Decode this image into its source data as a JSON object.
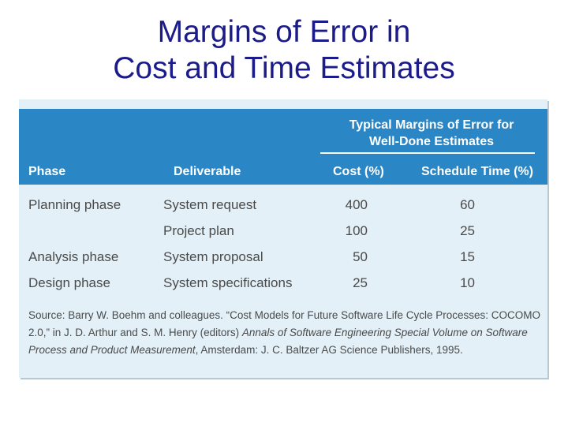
{
  "slide": {
    "title_line1": "Margins of Error in",
    "title_line2": "Cost and Time Estimates"
  },
  "table": {
    "group_header_line1": "Typical Margins of Error for",
    "group_header_line2": "Well-Done Estimates",
    "columns": [
      "Phase",
      "Deliverable",
      "Cost (%)",
      "Schedule Time (%)"
    ],
    "rows": [
      {
        "phase": "Planning phase",
        "deliverable": "System request",
        "cost": "400",
        "schedule": "60"
      },
      {
        "phase": "",
        "deliverable": "Project plan",
        "cost": "100",
        "schedule": "25"
      },
      {
        "phase": "Analysis phase",
        "deliverable": "System proposal",
        "cost": "50",
        "schedule": "15"
      },
      {
        "phase": "Design phase",
        "deliverable": "System specifications",
        "cost": "25",
        "schedule": "10"
      }
    ],
    "source": {
      "prefix": "Source: Barry W. Boehm and colleagues. “Cost Models for Future Software Life Cycle Processes: COCOMO 2.0,” in J. D. Arthur and S. M. Henry (editors) ",
      "book": "Annals of Software Engineering Special Volume on Software Process and Product Measurement",
      "suffix": ", Amsterdam: J. C. Baltzer AG Science Publishers, 1995."
    }
  },
  "colors": {
    "title": "#1b1b8a",
    "header_band": "#2a86c4",
    "panel_background": "#e3f0f8",
    "body_text": "#4a4a4a"
  }
}
